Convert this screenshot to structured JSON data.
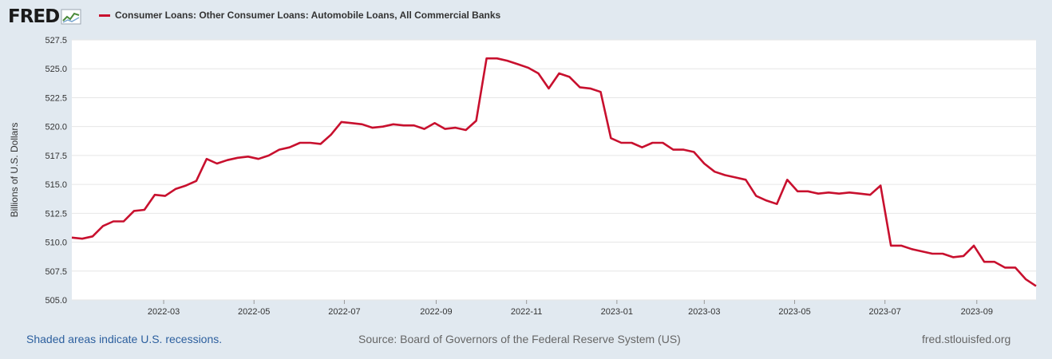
{
  "logo": {
    "text": "FRED"
  },
  "legend": {
    "label": "Consumer Loans: Other Consumer Loans: Automobile Loans, All Commercial Banks"
  },
  "footer": {
    "note": "Shaded areas indicate U.S. recessions.",
    "source": "Source: Board of Governors of the Federal Reserve System (US)",
    "site": "fred.stlouisfed.org"
  },
  "colors": {
    "series": "#c8102e",
    "background": "#e1e9f0",
    "plot": "#ffffff",
    "grid": "#e6e6e6",
    "note": "#2c5f9e"
  },
  "chart_data": {
    "type": "line",
    "title": "",
    "xlabel": "",
    "ylabel": "Billions of U.S. Dollars",
    "ylim": [
      505.0,
      527.5
    ],
    "yticks": [
      "505.0",
      "507.5",
      "510.0",
      "512.5",
      "515.0",
      "517.5",
      "520.0",
      "522.5",
      "525.0",
      "527.5"
    ],
    "xticks": [
      {
        "label": "2022-03",
        "date": "2022-03-01"
      },
      {
        "label": "2022-05",
        "date": "2022-05-01"
      },
      {
        "label": "2022-07",
        "date": "2022-07-01"
      },
      {
        "label": "2022-09",
        "date": "2022-09-01"
      },
      {
        "label": "2022-11",
        "date": "2022-11-01"
      },
      {
        "label": "2023-01",
        "date": "2023-01-01"
      },
      {
        "label": "2023-03",
        "date": "2023-03-01"
      },
      {
        "label": "2023-05",
        "date": "2023-05-01"
      },
      {
        "label": "2023-07",
        "date": "2023-07-01"
      },
      {
        "label": "2023-09",
        "date": "2023-09-01"
      }
    ],
    "grid": true,
    "legend_position": "top-left",
    "series": [
      {
        "name": "Consumer Loans: Other Consumer Loans: Automobile Loans, All Commercial Banks",
        "color": "#c8102e",
        "x": [
          "2021-12-29",
          "2022-01-05",
          "2022-01-12",
          "2022-01-19",
          "2022-01-26",
          "2022-02-02",
          "2022-02-09",
          "2022-02-16",
          "2022-02-23",
          "2022-03-02",
          "2022-03-09",
          "2022-03-16",
          "2022-03-23",
          "2022-03-30",
          "2022-04-06",
          "2022-04-13",
          "2022-04-20",
          "2022-04-27",
          "2022-05-04",
          "2022-05-11",
          "2022-05-18",
          "2022-05-25",
          "2022-06-01",
          "2022-06-08",
          "2022-06-15",
          "2022-06-22",
          "2022-06-29",
          "2022-07-06",
          "2022-07-13",
          "2022-07-20",
          "2022-07-27",
          "2022-08-03",
          "2022-08-10",
          "2022-08-17",
          "2022-08-24",
          "2022-08-31",
          "2022-09-07",
          "2022-09-14",
          "2022-09-21",
          "2022-09-28",
          "2022-10-05",
          "2022-10-12",
          "2022-10-19",
          "2022-10-26",
          "2022-11-02",
          "2022-11-09",
          "2022-11-16",
          "2022-11-23",
          "2022-11-30",
          "2022-12-07",
          "2022-12-14",
          "2022-12-21",
          "2022-12-28",
          "2023-01-04",
          "2023-01-11",
          "2023-01-18",
          "2023-01-25",
          "2023-02-01",
          "2023-02-08",
          "2023-02-15",
          "2023-02-22",
          "2023-03-01",
          "2023-03-08",
          "2023-03-15",
          "2023-03-22",
          "2023-03-29",
          "2023-04-05",
          "2023-04-12",
          "2023-04-19",
          "2023-04-26",
          "2023-05-03",
          "2023-05-10",
          "2023-05-17",
          "2023-05-24",
          "2023-05-31",
          "2023-06-07",
          "2023-06-14",
          "2023-06-21",
          "2023-06-28",
          "2023-07-05",
          "2023-07-12",
          "2023-07-19",
          "2023-07-26",
          "2023-08-02",
          "2023-08-09",
          "2023-08-16",
          "2023-08-23",
          "2023-08-30",
          "2023-09-06",
          "2023-09-13",
          "2023-09-20",
          "2023-09-27",
          "2023-10-04",
          "2023-10-11"
        ],
        "y": [
          510.4,
          510.3,
          510.5,
          511.4,
          511.8,
          511.8,
          512.7,
          512.8,
          514.1,
          514.0,
          514.6,
          514.9,
          515.3,
          517.2,
          516.8,
          517.1,
          517.3,
          517.4,
          517.2,
          517.5,
          518.0,
          518.2,
          518.6,
          518.6,
          518.5,
          519.3,
          520.4,
          520.3,
          520.2,
          519.9,
          520.0,
          520.2,
          520.1,
          520.1,
          519.8,
          520.3,
          519.8,
          519.9,
          519.7,
          520.5,
          525.9,
          525.9,
          525.7,
          525.4,
          525.1,
          524.6,
          523.3,
          524.6,
          524.3,
          523.4,
          523.3,
          523.0,
          519.0,
          518.6,
          518.6,
          518.2,
          518.6,
          518.6,
          518.0,
          518.0,
          517.8,
          516.8,
          516.1,
          515.8,
          515.6,
          515.4,
          514.0,
          513.6,
          513.3,
          515.4,
          514.4,
          514.4,
          514.2,
          514.3,
          514.2,
          514.3,
          514.2,
          514.1,
          514.9,
          509.7,
          509.7,
          509.4,
          509.2,
          509.0,
          509.0,
          508.7,
          508.8,
          509.7,
          508.3,
          508.3,
          507.8,
          507.8,
          506.8,
          506.2
        ]
      }
    ]
  }
}
